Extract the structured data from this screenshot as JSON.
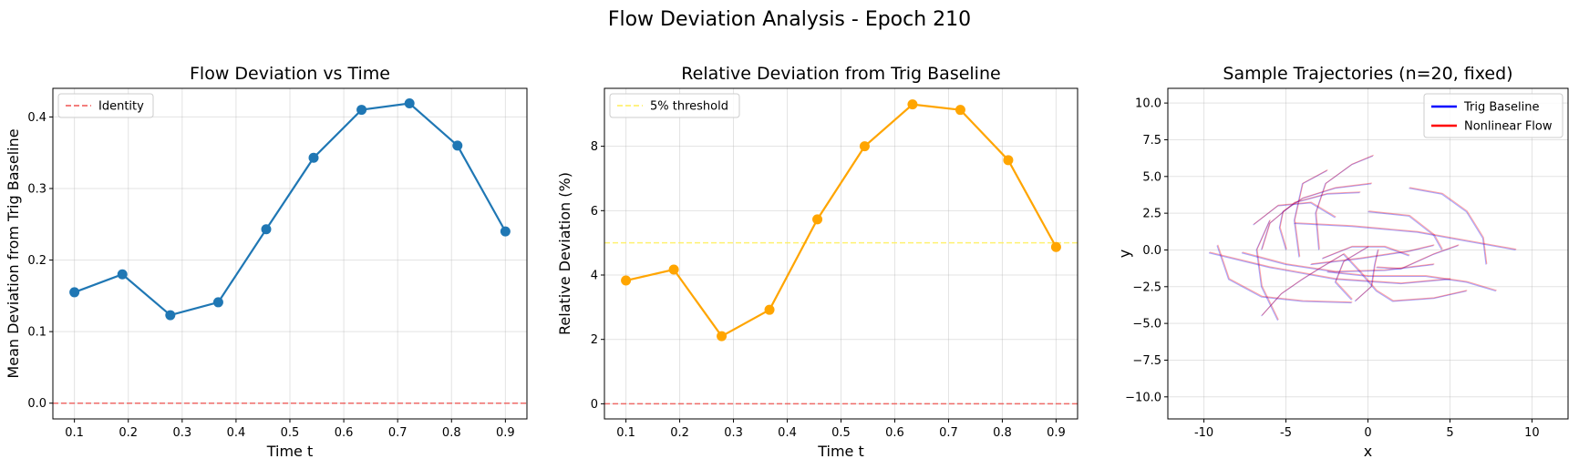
{
  "suptitle": "Flow Deviation Analysis - Epoch 210",
  "chart_data": [
    {
      "type": "line",
      "title": "Flow Deviation vs Time",
      "xlabel": "Time t",
      "ylabel": "Mean Deviation from Trig Baseline",
      "xlim": [
        0.06,
        0.94
      ],
      "ylim": [
        -0.022,
        0.44
      ],
      "xticks": [
        0.1,
        0.2,
        0.3,
        0.4,
        0.5,
        0.6,
        0.7,
        0.8,
        0.9
      ],
      "yticks": [
        0.0,
        0.1,
        0.2,
        0.3,
        0.4
      ],
      "ytick_labels": [
        "0.0",
        "0.1",
        "0.2",
        "0.3",
        "0.4"
      ],
      "x": [
        0.1,
        0.189,
        0.278,
        0.367,
        0.456,
        0.544,
        0.633,
        0.722,
        0.811,
        0.9
      ],
      "series": [
        {
          "values": [
            0.155,
            0.18,
            0.123,
            0.141,
            0.243,
            0.343,
            0.41,
            0.419,
            0.36,
            0.24
          ],
          "color": "#1f77b4"
        }
      ],
      "hlines": [
        {
          "y": 0,
          "color": "#ef5350",
          "name": "Identity"
        }
      ],
      "legend": {
        "position": "top-left"
      }
    },
    {
      "type": "line",
      "title": "Relative Deviation from Trig Baseline",
      "xlabel": "Time t",
      "ylabel": "Relative Deviation (%)",
      "xlim": [
        0.06,
        0.94
      ],
      "ylim": [
        -0.47,
        9.8
      ],
      "xticks": [
        0.1,
        0.2,
        0.3,
        0.4,
        0.5,
        0.6,
        0.7,
        0.8,
        0.9
      ],
      "yticks": [
        0,
        2,
        4,
        6,
        8
      ],
      "ytick_labels": [
        "0",
        "2",
        "4",
        "6",
        "8"
      ],
      "x": [
        0.1,
        0.189,
        0.278,
        0.367,
        0.456,
        0.544,
        0.633,
        0.722,
        0.811,
        0.9
      ],
      "series": [
        {
          "values": [
            3.83,
            4.17,
            2.1,
            2.92,
            5.73,
            8.0,
            9.3,
            9.13,
            7.57,
            4.87
          ],
          "color": "#ffa500"
        }
      ],
      "hlines": [
        {
          "y": 5,
          "color": "#ffee58",
          "name": "5% threshold"
        },
        {
          "y": 0,
          "color": "#ef5350"
        }
      ],
      "legend": {
        "position": "top-left"
      }
    },
    {
      "type": "line",
      "title": "Sample Trajectories (n=20, fixed)",
      "xlabel": "x",
      "ylabel": "y",
      "xlim": [
        -12.2,
        12.2
      ],
      "ylim": [
        -11.5,
        11.0
      ],
      "xticks": [
        -10,
        -5,
        0,
        5,
        10
      ],
      "yticks": [
        -10.0,
        -7.5,
        -5.0,
        -2.5,
        0.0,
        2.5,
        5.0,
        7.5,
        10.0
      ],
      "ytick_labels": [
        "−10.0",
        "−7.5",
        "−5.0",
        "−2.5",
        "0.0",
        "2.5",
        "5.0",
        "7.5",
        "10.0"
      ],
      "legend": {
        "position": "top-right",
        "entries": [
          {
            "name": "Trig Baseline",
            "color": "#0000ff"
          },
          {
            "name": "Nonlinear Flow",
            "color": "#ff0000"
          }
        ]
      },
      "trajectories": [
        [
          [
            -6.5,
            0.0
          ],
          [
            -6.0,
            1.8
          ],
          [
            -4.5,
            3.2
          ],
          [
            -2.5,
            3.8
          ],
          [
            -0.5,
            3.9
          ]
        ],
        [
          [
            -5.5,
            -4.8
          ],
          [
            -6.5,
            -2.5
          ],
          [
            -6.8,
            0.0
          ],
          [
            -6.0,
            2.0
          ]
        ],
        [
          [
            -7.7,
            -0.2
          ],
          [
            -5.0,
            -1.0
          ],
          [
            -2.0,
            -1.5
          ],
          [
            1.0,
            -1.4
          ],
          [
            4.0,
            -1.0
          ]
        ],
        [
          [
            -9.7,
            -0.2
          ],
          [
            -6.0,
            -1.2
          ],
          [
            -2.0,
            -2.0
          ],
          [
            2.0,
            -2.3
          ],
          [
            5.0,
            -2.0
          ]
        ],
        [
          [
            -9.2,
            0.3
          ],
          [
            -8.5,
            -2.0
          ],
          [
            -6.5,
            -3.2
          ],
          [
            -4.0,
            -3.5
          ],
          [
            -1.0,
            -3.6
          ]
        ],
        [
          [
            -4.2,
            -0.5
          ],
          [
            -4.5,
            2.0
          ],
          [
            -4.0,
            4.5
          ],
          [
            -2.5,
            5.4
          ]
        ],
        [
          [
            -3.0,
            0.0
          ],
          [
            -3.2,
            2.5
          ],
          [
            -2.6,
            4.5
          ],
          [
            -1.0,
            5.8
          ],
          [
            0.3,
            6.4
          ]
        ],
        [
          [
            -5.0,
            0.0
          ],
          [
            -5.4,
            1.5
          ],
          [
            -5.2,
            2.6
          ],
          [
            -4.0,
            3.5
          ],
          [
            -2.0,
            4.2
          ],
          [
            0.2,
            4.5
          ]
        ],
        [
          [
            0.0,
            2.6
          ],
          [
            2.5,
            2.3
          ],
          [
            4.0,
            1.0
          ],
          [
            4.5,
            0.0
          ]
        ],
        [
          [
            2.5,
            4.2
          ],
          [
            4.5,
            3.8
          ],
          [
            6.0,
            2.6
          ],
          [
            7.0,
            0.8
          ],
          [
            7.2,
            -1.0
          ]
        ],
        [
          [
            -4.5,
            1.8
          ],
          [
            -1.0,
            1.6
          ],
          [
            3.0,
            1.2
          ],
          [
            6.0,
            0.6
          ],
          [
            9.0,
            0.0
          ]
        ],
        [
          [
            -3.5,
            -1.0
          ],
          [
            -0.5,
            -0.6
          ],
          [
            2.5,
            -0.1
          ],
          [
            4.0,
            0.3
          ]
        ],
        [
          [
            -2.8,
            -0.6
          ],
          [
            -1.0,
            0.2
          ],
          [
            1.0,
            0.2
          ],
          [
            2.5,
            -0.4
          ]
        ],
        [
          [
            -2.5,
            -1.5
          ],
          [
            0.0,
            -1.8
          ],
          [
            3.5,
            -1.8
          ],
          [
            6.0,
            -2.2
          ],
          [
            7.8,
            -2.8
          ]
        ],
        [
          [
            -1.5,
            -0.3
          ],
          [
            -0.5,
            -1.5
          ],
          [
            0.5,
            -2.8
          ],
          [
            1.5,
            -3.5
          ],
          [
            4.0,
            -3.3
          ],
          [
            6.0,
            -2.8
          ]
        ],
        [
          [
            -0.8,
            -3.5
          ],
          [
            0.2,
            -2.5
          ],
          [
            0.4,
            -1.0
          ],
          [
            0.6,
            0.0
          ]
        ],
        [
          [
            -6.5,
            -4.5
          ],
          [
            -5.3,
            -3.0
          ],
          [
            -4.0,
            -2.0
          ],
          [
            -3.0,
            -1.3
          ],
          [
            -1.5,
            -0.3
          ]
        ],
        [
          [
            -1.0,
            -3.4
          ],
          [
            -2.0,
            -2.2
          ],
          [
            -1.5,
            -0.8
          ],
          [
            0.0,
            0.2
          ]
        ],
        [
          [
            -7.0,
            1.7
          ],
          [
            -5.5,
            3.0
          ],
          [
            -3.5,
            3.2
          ],
          [
            -2.0,
            2.2
          ]
        ],
        [
          [
            0.5,
            -1.2
          ],
          [
            2.0,
            -1.3
          ],
          [
            4.0,
            -0.3
          ],
          [
            5.5,
            0.3
          ]
        ]
      ]
    }
  ]
}
